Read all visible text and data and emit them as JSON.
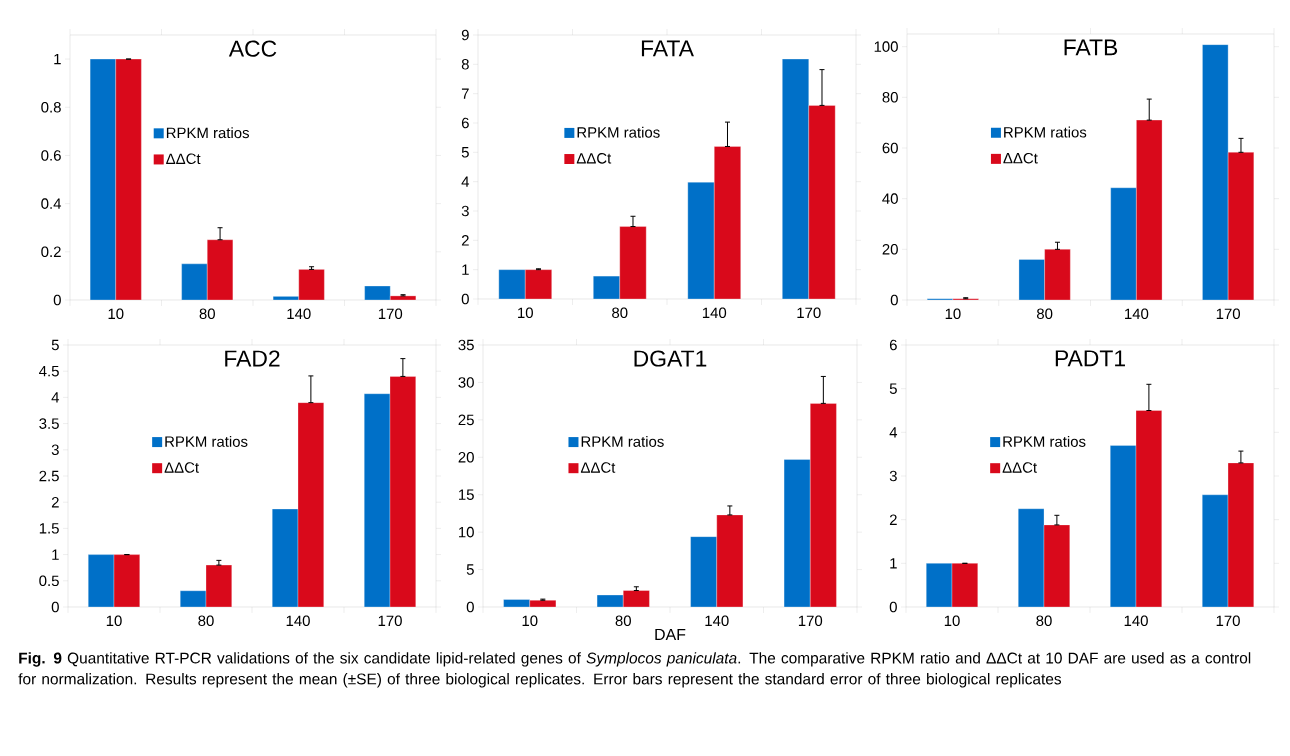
{
  "chart_data": [
    {
      "type": "bar",
      "title": "ACC",
      "categories": [
        "10",
        "80",
        "140",
        "170"
      ],
      "ylim": [
        0,
        1.1
      ],
      "yticks": [
        0,
        0.2,
        0.4,
        0.6,
        0.8,
        1
      ],
      "legend": "center",
      "series": [
        {
          "name": "RPKM ratios",
          "color": "#0070c8",
          "values": [
            1,
            0.15,
            0.015,
            0.058
          ]
        },
        {
          "name": "ΔΔCt",
          "color": "#d9091b",
          "values": [
            1,
            0.25,
            0.127,
            0.017
          ],
          "errors": [
            null,
            [
              0.25,
              0.3
            ],
            [
              0.127,
              0.138
            ],
            [
              0.017,
              0.022
            ]
          ]
        }
      ]
    },
    {
      "type": "bar",
      "title": "FATA",
      "categories": [
        "10",
        "80",
        "140",
        "170"
      ],
      "ylim": [
        0,
        9
      ],
      "yticks": [
        0,
        1,
        2,
        3,
        4,
        5,
        6,
        7,
        8,
        9
      ],
      "legend": "center",
      "series": [
        {
          "name": "RPKM ratios",
          "color": "#0070c8",
          "values": [
            1,
            0.78,
            3.98,
            8.18
          ]
        },
        {
          "name": "ΔΔCt",
          "color": "#d9091b",
          "values": [
            1,
            2.47,
            5.2,
            6.6
          ],
          "errors": [
            [
              1,
              1.03
            ],
            [
              2.47,
              2.82
            ],
            [
              5.2,
              6.03
            ],
            [
              6.6,
              7.82
            ]
          ]
        }
      ]
    },
    {
      "type": "bar",
      "title": "FATB",
      "categories": [
        "10",
        "80",
        "140",
        "170"
      ],
      "ylim": [
        0,
        105
      ],
      "yticks": [
        0,
        20,
        40,
        60,
        80,
        100
      ],
      "legend": "center",
      "series": [
        {
          "name": "RPKM ratios",
          "color": "#0070c8",
          "values": [
            0.5,
            16,
            44.3,
            100.8
          ]
        },
        {
          "name": "ΔΔCt",
          "color": "#d9091b",
          "values": [
            0.5,
            20,
            71,
            58.3
          ],
          "errors": [
            [
              0.5,
              0.9
            ],
            [
              20,
              22.8
            ],
            [
              71,
              79.3
            ],
            [
              58.3,
              63.8
            ]
          ]
        }
      ]
    },
    {
      "type": "bar",
      "title": "FAD2",
      "categories": [
        "10",
        "80",
        "140",
        "170"
      ],
      "ylim": [
        0,
        5
      ],
      "yticks": [
        0,
        0.5,
        1,
        1.5,
        2,
        2.5,
        3,
        3.5,
        4,
        4.5,
        5
      ],
      "legend": "center",
      "series": [
        {
          "name": "RPKM ratios",
          "color": "#0070c8",
          "values": [
            1,
            0.31,
            1.87,
            4.07
          ]
        },
        {
          "name": "ΔΔCt",
          "color": "#d9091b",
          "values": [
            1,
            0.8,
            3.9,
            4.4
          ],
          "errors": [
            null,
            [
              0.8,
              0.89
            ],
            [
              3.9,
              4.41
            ],
            [
              4.4,
              4.74
            ]
          ]
        }
      ]
    },
    {
      "type": "bar",
      "title": "DGAT1",
      "xlabel": "DAF",
      "categories": [
        "10",
        "80",
        "140",
        "170"
      ],
      "ylim": [
        0,
        35
      ],
      "yticks": [
        0,
        5,
        10,
        15,
        20,
        25,
        30,
        35
      ],
      "legend": "center",
      "series": [
        {
          "name": "RPKM ratios",
          "color": "#0070c8",
          "values": [
            1,
            1.6,
            9.4,
            19.7
          ]
        },
        {
          "name": "ΔΔCt",
          "color": "#d9091b",
          "values": [
            0.9,
            2.2,
            12.3,
            27.2
          ],
          "errors": [
            [
              0.9,
              1.05
            ],
            [
              2.2,
              2.7
            ],
            [
              12.3,
              13.5
            ],
            [
              27.2,
              30.8
            ]
          ]
        }
      ]
    },
    {
      "type": "bar",
      "title": "PADT1",
      "categories": [
        "10",
        "80",
        "140",
        "170"
      ],
      "ylim": [
        0,
        6
      ],
      "yticks": [
        0,
        1,
        2,
        3,
        4,
        5,
        6
      ],
      "legend": "center",
      "series": [
        {
          "name": "RPKM ratios",
          "color": "#0070c8",
          "values": [
            1,
            2.25,
            3.7,
            2.57
          ]
        },
        {
          "name": "ΔΔCt",
          "color": "#d9091b",
          "values": [
            1,
            1.88,
            4.5,
            3.3
          ],
          "errors": [
            null,
            [
              1.88,
              2.1
            ],
            [
              4.5,
              5.1
            ],
            [
              3.3,
              3.57
            ]
          ]
        }
      ],
      "annotations": [
        "**Fig. 9** Quantitative RT-PCR validations of the six candidate lipid-related genes of *Symplocos paniculata*. The comparative RPKM ratio and ΔΔCt at 10 DAF are used as a control for normalization. Results represent the mean (±SE) of three biological replicates. Error bars represent the standard error of three biological replicates"
      ]
    }
  ]
}
